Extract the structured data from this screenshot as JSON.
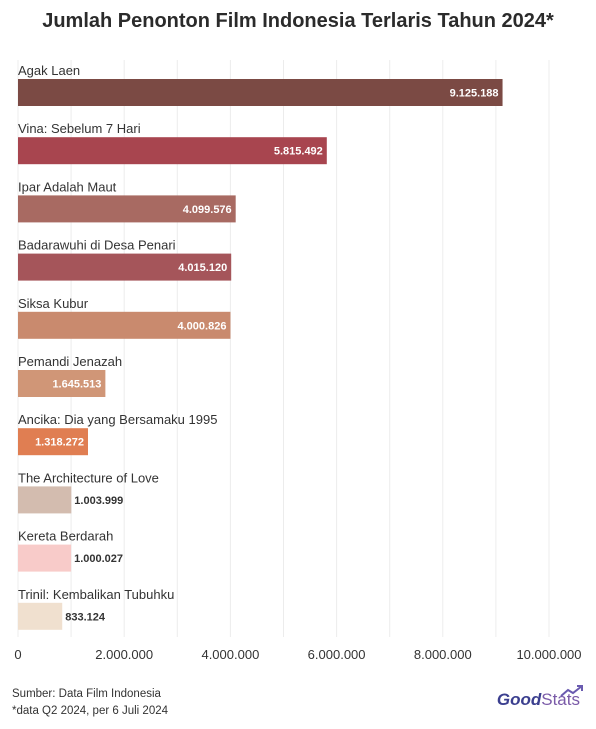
{
  "title": "Jumlah Penonton Film Indonesia Terlaris Tahun 2024*",
  "footer": {
    "source": "Sumber: Data Film Indonesia",
    "note": "*data Q2 2024, per 6 Juli 2024"
  },
  "logo": {
    "good": "Good",
    "stats": "Stats",
    "icon": "trend-arrow-icon"
  },
  "chart_data": {
    "type": "bar",
    "orientation": "horizontal",
    "title": "Jumlah Penonton Film Indonesia Terlaris Tahun 2024*",
    "xlim": [
      0,
      10000000
    ],
    "grid": true,
    "x_ticks": [
      0,
      2000000,
      4000000,
      6000000,
      8000000,
      10000000
    ],
    "x_tick_labels": [
      "0",
      "2.000.000",
      "4.000.000",
      "6.000.000",
      "8.000.000",
      "10.000.000"
    ],
    "categories": [
      "Agak Laen",
      "Vina: Sebelum 7 Hari",
      "Ipar Adalah Maut",
      "Badarawuhi di Desa Penari",
      "Siksa Kubur",
      "Pemandi Jenazah",
      "Ancika: Dia yang Bersamaku 1995",
      "The Architecture of Love",
      "Kereta Berdarah",
      "Trinil: Kembalikan Tubuhku"
    ],
    "values": [
      9125188,
      5815492,
      4099576,
      4015120,
      4000826,
      1645513,
      1318272,
      1003999,
      1000027,
      833124
    ],
    "value_labels": [
      "9.125.188",
      "5.815.492",
      "4.099.576",
      "4.015.120",
      "4.000.826",
      "1.645.513",
      "1.318.272",
      "1.003.999",
      "1.000.027",
      "833.124"
    ],
    "colors": [
      "#7b4a44",
      "#a8454f",
      "#a86a62",
      "#a5555a",
      "#c98a6e",
      "#d09677",
      "#e07e52",
      "#d3bcaf",
      "#f8cbc9",
      "#f0e0cf"
    ],
    "label_inside": [
      true,
      true,
      true,
      true,
      true,
      true,
      true,
      false,
      false,
      false
    ]
  }
}
